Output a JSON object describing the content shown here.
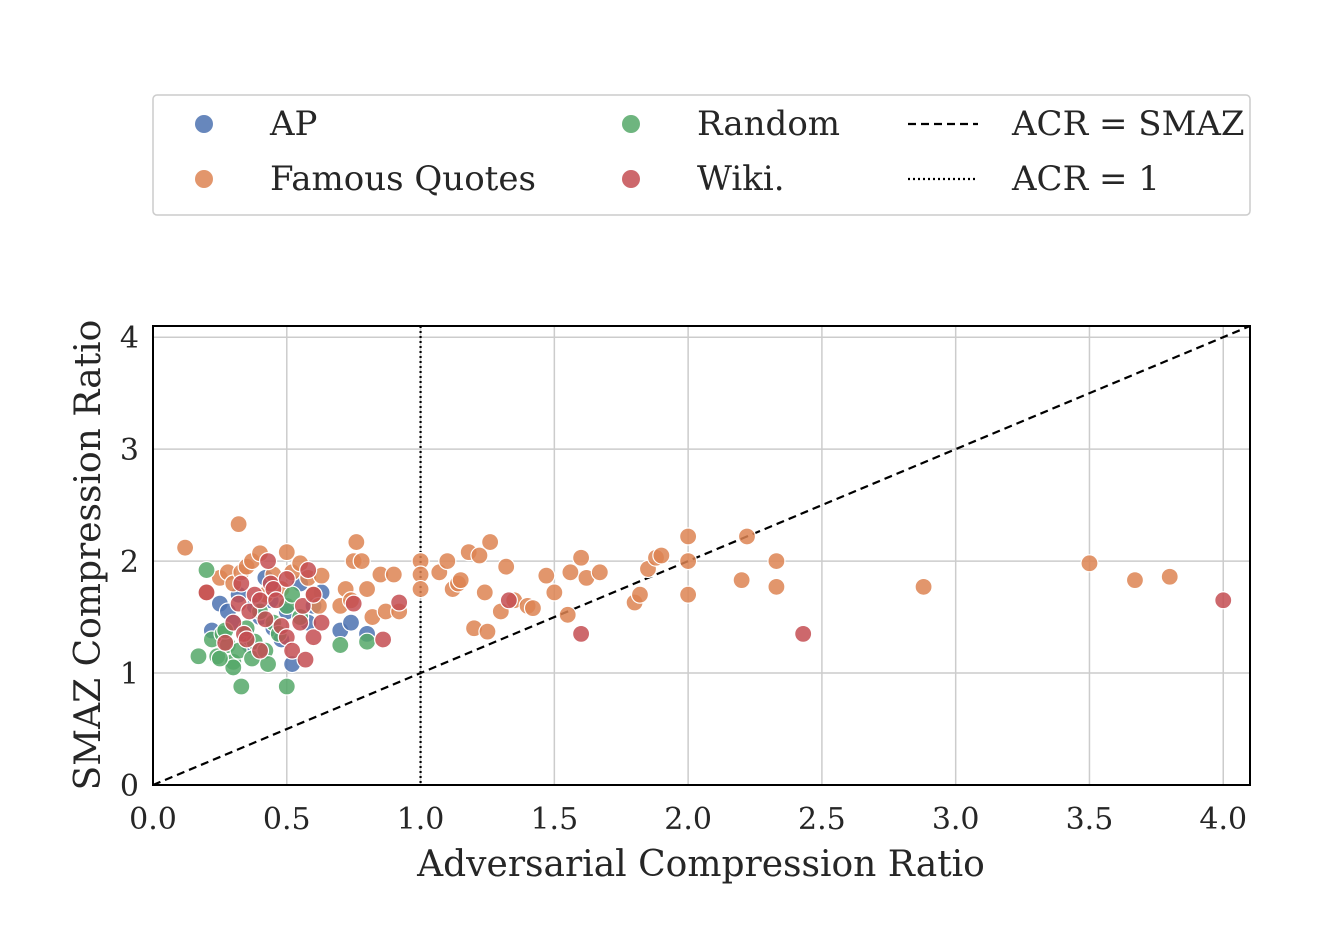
{
  "chart_data": {
    "type": "scatter",
    "title": "",
    "xlabel": "Adversarial Compression Ratio",
    "ylabel": "SMAZ Compression Ratio",
    "xlim": [
      0,
      4.1
    ],
    "ylim": [
      0,
      4.1
    ],
    "xticks": [
      0,
      0.5,
      1,
      1.5,
      2,
      2.5,
      3,
      3.5,
      4
    ],
    "xtick_labels": [
      "0.0",
      "0.5",
      "1.0",
      "1.5",
      "2.0",
      "2.5",
      "3.0",
      "3.5",
      "4.0"
    ],
    "yticks": [
      0,
      1,
      2,
      3,
      4
    ],
    "ytick_labels": [
      "0",
      "1",
      "2",
      "3",
      "4"
    ],
    "grid": true,
    "legend_position": "top",
    "reference_lines": [
      {
        "name": "ACR = SMAZ",
        "style": "dashed",
        "kind": "diagonal"
      },
      {
        "name": "ACR = 1",
        "style": "dotted",
        "kind": "vertical",
        "x": 1
      }
    ],
    "series": [
      {
        "name": "AP",
        "color": "#4c72b0",
        "points": [
          [
            0.22,
            1.38
          ],
          [
            0.25,
            1.62
          ],
          [
            0.28,
            1.55
          ],
          [
            0.3,
            1.45
          ],
          [
            0.32,
            1.7
          ],
          [
            0.35,
            1.35
          ],
          [
            0.38,
            1.6
          ],
          [
            0.4,
            1.5
          ],
          [
            0.42,
            1.85
          ],
          [
            0.45,
            1.4
          ],
          [
            0.48,
            1.3
          ],
          [
            0.5,
            1.55
          ],
          [
            0.52,
            1.08
          ],
          [
            0.55,
            1.8
          ],
          [
            0.58,
            1.45
          ],
          [
            0.6,
            1.6
          ],
          [
            0.63,
            1.72
          ],
          [
            0.7,
            1.38
          ],
          [
            0.74,
            1.45
          ],
          [
            0.8,
            1.35
          ],
          [
            0.36,
            1.25
          ],
          [
            0.44,
            1.65
          ]
        ]
      },
      {
        "name": "Famous Quotes",
        "color": "#dd8452",
        "points": [
          [
            0.12,
            2.12
          ],
          [
            0.2,
            1.72
          ],
          [
            0.25,
            1.85
          ],
          [
            0.28,
            1.9
          ],
          [
            0.3,
            1.8
          ],
          [
            0.32,
            2.33
          ],
          [
            0.33,
            1.9
          ],
          [
            0.35,
            1.95
          ],
          [
            0.37,
            2.0
          ],
          [
            0.4,
            2.07
          ],
          [
            0.42,
            1.7
          ],
          [
            0.45,
            1.88
          ],
          [
            0.48,
            1.75
          ],
          [
            0.5,
            2.08
          ],
          [
            0.52,
            1.9
          ],
          [
            0.55,
            1.98
          ],
          [
            0.58,
            1.85
          ],
          [
            0.6,
            1.7
          ],
          [
            0.62,
            1.6
          ],
          [
            0.63,
            1.87
          ],
          [
            0.7,
            1.6
          ],
          [
            0.72,
            1.75
          ],
          [
            0.74,
            1.65
          ],
          [
            0.75,
            2.0
          ],
          [
            0.76,
            2.17
          ],
          [
            0.78,
            2.0
          ],
          [
            0.8,
            1.75
          ],
          [
            0.82,
            1.5
          ],
          [
            0.85,
            1.88
          ],
          [
            0.87,
            1.55
          ],
          [
            0.9,
            1.88
          ],
          [
            0.92,
            1.55
          ],
          [
            1.0,
            2.0
          ],
          [
            1.0,
            1.88
          ],
          [
            1.0,
            1.75
          ],
          [
            1.07,
            1.9
          ],
          [
            1.1,
            2.0
          ],
          [
            1.12,
            1.75
          ],
          [
            1.14,
            1.8
          ],
          [
            1.15,
            1.83
          ],
          [
            1.18,
            2.08
          ],
          [
            1.2,
            1.4
          ],
          [
            1.22,
            2.05
          ],
          [
            1.24,
            1.72
          ],
          [
            1.26,
            2.17
          ],
          [
            1.3,
            1.55
          ],
          [
            1.32,
            1.95
          ],
          [
            1.35,
            1.65
          ],
          [
            1.4,
            1.6
          ],
          [
            1.42,
            1.58
          ],
          [
            1.47,
            1.87
          ],
          [
            1.5,
            1.72
          ],
          [
            1.55,
            1.52
          ],
          [
            1.56,
            1.9
          ],
          [
            1.6,
            2.03
          ],
          [
            1.62,
            1.85
          ],
          [
            1.67,
            1.9
          ],
          [
            1.8,
            1.63
          ],
          [
            1.82,
            1.7
          ],
          [
            1.85,
            1.93
          ],
          [
            1.88,
            2.03
          ],
          [
            1.9,
            2.05
          ],
          [
            2.0,
            2.22
          ],
          [
            2.0,
            2.0
          ],
          [
            2.0,
            1.7
          ],
          [
            2.2,
            1.83
          ],
          [
            2.22,
            2.22
          ],
          [
            2.33,
            2.0
          ],
          [
            2.33,
            1.77
          ],
          [
            2.88,
            1.77
          ],
          [
            3.5,
            1.98
          ],
          [
            3.67,
            1.83
          ],
          [
            3.8,
            1.86
          ],
          [
            1.25,
            1.37
          ]
        ]
      },
      {
        "name": "Random",
        "color": "#55a868",
        "points": [
          [
            0.17,
            1.15
          ],
          [
            0.2,
            1.92
          ],
          [
            0.22,
            1.3
          ],
          [
            0.24,
            1.15
          ],
          [
            0.26,
            1.35
          ],
          [
            0.28,
            1.25
          ],
          [
            0.3,
            1.1
          ],
          [
            0.3,
            1.05
          ],
          [
            0.32,
            1.2
          ],
          [
            0.33,
            0.88
          ],
          [
            0.35,
            1.4
          ],
          [
            0.37,
            1.13
          ],
          [
            0.38,
            1.28
          ],
          [
            0.4,
            1.55
          ],
          [
            0.42,
            1.2
          ],
          [
            0.43,
            1.08
          ],
          [
            0.45,
            1.45
          ],
          [
            0.47,
            1.35
          ],
          [
            0.5,
            1.6
          ],
          [
            0.5,
            0.88
          ],
          [
            0.52,
            1.7
          ],
          [
            0.55,
            1.5
          ],
          [
            0.7,
            1.25
          ],
          [
            0.8,
            1.28
          ],
          [
            0.25,
            1.13
          ],
          [
            0.27,
            1.38
          ]
        ]
      },
      {
        "name": "Wiki.",
        "color": "#c44e52",
        "points": [
          [
            0.2,
            1.72
          ],
          [
            0.27,
            1.27
          ],
          [
            0.3,
            1.45
          ],
          [
            0.32,
            1.62
          ],
          [
            0.33,
            1.8
          ],
          [
            0.34,
            1.35
          ],
          [
            0.35,
            1.3
          ],
          [
            0.36,
            1.55
          ],
          [
            0.38,
            1.7
          ],
          [
            0.4,
            1.65
          ],
          [
            0.42,
            1.48
          ],
          [
            0.43,
            2.0
          ],
          [
            0.44,
            1.8
          ],
          [
            0.45,
            1.75
          ],
          [
            0.46,
            1.65
          ],
          [
            0.48,
            1.42
          ],
          [
            0.5,
            1.32
          ],
          [
            0.5,
            1.84
          ],
          [
            0.52,
            1.2
          ],
          [
            0.55,
            1.45
          ],
          [
            0.56,
            1.6
          ],
          [
            0.57,
            1.12
          ],
          [
            0.58,
            1.92
          ],
          [
            0.6,
            1.7
          ],
          [
            0.6,
            1.32
          ],
          [
            0.63,
            1.45
          ],
          [
            0.75,
            1.62
          ],
          [
            0.86,
            1.3
          ],
          [
            0.92,
            1.63
          ],
          [
            1.33,
            1.65
          ],
          [
            1.6,
            1.35
          ],
          [
            2.43,
            1.35
          ],
          [
            4.0,
            1.65
          ],
          [
            0.4,
            1.2
          ]
        ]
      }
    ]
  }
}
